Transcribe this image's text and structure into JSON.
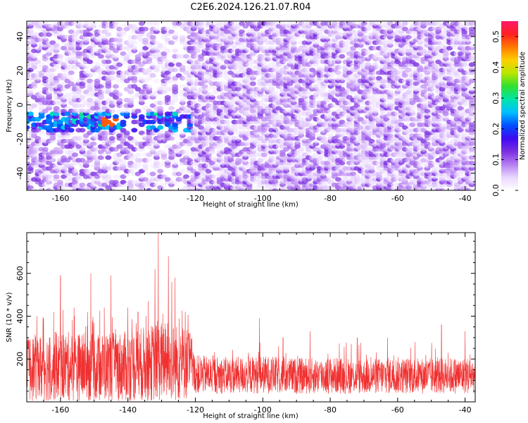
{
  "title": "C2E6.2024.126.21.07.R04",
  "colors": {
    "snr_line": "#f03030",
    "colormap": [
      "#ffffff",
      "#e9d7ff",
      "#b57cf2",
      "#7a2ee0",
      "#3c0af2",
      "#0050ff",
      "#00bfff",
      "#00e5a8",
      "#30e030",
      "#b8e600",
      "#ffd000",
      "#ff7a00",
      "#ff2020",
      "#ff1a6a"
    ]
  },
  "chart_data": [
    {
      "type": "heatmap",
      "id": "spectrogram",
      "xlabel": "Height of straight line (km)",
      "ylabel": "Frequency (Hz)",
      "xlim": [
        -170,
        -37
      ],
      "ylim": [
        -50,
        49
      ],
      "x_ticks": [
        -160,
        -140,
        -120,
        -100,
        -80,
        -60,
        -40
      ],
      "y_ticks": [
        -40,
        -20,
        0,
        20,
        40
      ],
      "grid": false,
      "colorbar": {
        "label": "Normalized spectral amplitude",
        "range": [
          0,
          0.55
        ],
        "ticks": [
          0.0,
          0.1,
          0.2,
          0.3,
          0.4,
          0.5
        ]
      },
      "feature_band": {
        "description_free": true,
        "x_range": [
          -170,
          -121
        ],
        "frequency_center": -10,
        "frequency_halfwidth": 6,
        "peak_x": -145,
        "peak_amplitude": 0.48
      }
    },
    {
      "type": "line",
      "id": "snr",
      "xlabel": "Height of straight line (km)",
      "ylabel": "SNR (10 * v/v)",
      "xlim": [
        -170,
        -37
      ],
      "ylim": [
        0,
        790
      ],
      "x_ticks": [
        -160,
        -140,
        -120,
        -100,
        -80,
        -60,
        -40
      ],
      "y_ticks": [
        200,
        400,
        600
      ],
      "grid": false,
      "series": [
        {
          "baseline_x": [
            -170,
            -160,
            -150,
            -140,
            -130,
            -122,
            -120,
            -110,
            -100,
            -90,
            -80,
            -70,
            -60,
            -50,
            -37
          ],
          "baseline_y": [
            140,
            150,
            145,
            150,
            170,
            160,
            120,
            115,
            118,
            112,
            115,
            110,
            115,
            112,
            115
          ],
          "peaks": [
            {
              "x": -167,
              "y": 400
            },
            {
              "x": -165,
              "y": 390
            },
            {
              "x": -162,
              "y": 420
            },
            {
              "x": -160,
              "y": 590
            },
            {
              "x": -156,
              "y": 440
            },
            {
              "x": -151,
              "y": 600
            },
            {
              "x": -147,
              "y": 440
            },
            {
              "x": -145,
              "y": 590
            },
            {
              "x": -140,
              "y": 440
            },
            {
              "x": -137,
              "y": 420
            },
            {
              "x": -134,
              "y": 470
            },
            {
              "x": -132,
              "y": 620
            },
            {
              "x": -131,
              "y": 790
            },
            {
              "x": -128,
              "y": 680
            },
            {
              "x": -127,
              "y": 560
            },
            {
              "x": -126,
              "y": 580
            },
            {
              "x": -123,
              "y": 420
            },
            {
              "x": -121,
              "y": 290
            },
            {
              "x": -101,
              "y": 390
            },
            {
              "x": -94,
              "y": 300
            },
            {
              "x": -86,
              "y": 330
            },
            {
              "x": -72,
              "y": 300
            },
            {
              "x": -63,
              "y": 300
            },
            {
              "x": -47,
              "y": 360
            },
            {
              "x": -40,
              "y": 330
            }
          ]
        }
      ]
    }
  ]
}
